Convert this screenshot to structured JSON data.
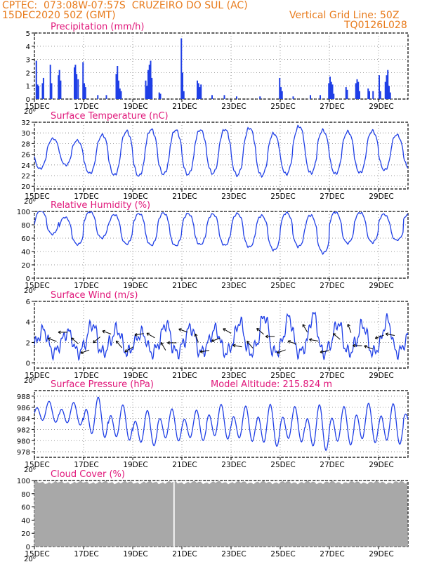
{
  "header": {
    "line1": "CPTEC:  073:08W-07:57S  CRUZEIRO DO SUL (AC)",
    "line2_left": "15DEC2020 50Z (GMT)",
    "line2_right": "Vertical Grid Line: 50Z",
    "line3_right": "TQ0126L028"
  },
  "colors": {
    "series": "#1f3fe6",
    "bars": "#1f3fe6",
    "cloud": "#a8a8a8",
    "title": "#e0177a",
    "header": "#e87b1c"
  },
  "x_tick_labels": [
    "15DEC",
    "17DEC",
    "19DEC",
    "21DEC",
    "23DEC",
    "25DEC",
    "27DEC",
    "29DEC"
  ],
  "x_ticks_days": [
    0,
    2,
    4,
    6,
    8,
    10,
    12,
    14
  ],
  "x_range_days": [
    0,
    15.2
  ],
  "cut_label": "20⁰",
  "chart_data": [
    {
      "id": "precip",
      "type": "bar",
      "title": "Precipitation (mm/h)",
      "ylim": [
        0,
        5
      ],
      "yticks": [
        0,
        1,
        2,
        3,
        4,
        5
      ],
      "events": [
        [
          0.05,
          2.9
        ],
        [
          0.1,
          1.1
        ],
        [
          0.14,
          1.0
        ],
        [
          0.3,
          1.2
        ],
        [
          0.34,
          1.6
        ],
        [
          0.62,
          2.6
        ],
        [
          0.67,
          1.2
        ],
        [
          0.95,
          1.8
        ],
        [
          0.99,
          2.2
        ],
        [
          1.04,
          1.4
        ],
        [
          1.6,
          2.4
        ],
        [
          1.64,
          2.6
        ],
        [
          1.69,
          1.9
        ],
        [
          1.75,
          1.5
        ],
        [
          1.95,
          2.8
        ],
        [
          2.0,
          1.2
        ],
        [
          2.05,
          0.9
        ],
        [
          2.55,
          0.3
        ],
        [
          2.9,
          0.3
        ],
        [
          3.3,
          1.9
        ],
        [
          3.35,
          2.5
        ],
        [
          3.4,
          1.4
        ],
        [
          3.45,
          0.8
        ],
        [
          3.5,
          0.6
        ],
        [
          4.5,
          1.4
        ],
        [
          4.55,
          1.0
        ],
        [
          4.6,
          2.2
        ],
        [
          4.65,
          2.6
        ],
        [
          4.7,
          2.9
        ],
        [
          4.75,
          1.6
        ],
        [
          5.05,
          0.5
        ],
        [
          5.1,
          0.4
        ],
        [
          5.95,
          4.6
        ],
        [
          6.0,
          2.0
        ],
        [
          6.05,
          0.6
        ],
        [
          6.6,
          1.4
        ],
        [
          6.65,
          1.2
        ],
        [
          6.7,
          0.9
        ],
        [
          6.75,
          1.1
        ],
        [
          7.2,
          0.3
        ],
        [
          7.7,
          0.3
        ],
        [
          8.2,
          0.2
        ],
        [
          9.15,
          0.2
        ],
        [
          9.95,
          1.6
        ],
        [
          10.0,
          0.9
        ],
        [
          10.05,
          0.6
        ],
        [
          10.5,
          0.2
        ],
        [
          11.2,
          0.3
        ],
        [
          11.6,
          0.3
        ],
        [
          11.95,
          1.2
        ],
        [
          12.0,
          1.7
        ],
        [
          12.05,
          1.3
        ],
        [
          12.1,
          1.1
        ],
        [
          12.15,
          0.4
        ],
        [
          12.65,
          0.9
        ],
        [
          12.7,
          0.7
        ],
        [
          13.05,
          1.2
        ],
        [
          13.1,
          1.5
        ],
        [
          13.15,
          1.3
        ],
        [
          13.2,
          0.6
        ],
        [
          13.55,
          0.8
        ],
        [
          13.6,
          0.6
        ],
        [
          13.75,
          0.6
        ],
        [
          14.0,
          1.8
        ],
        [
          14.05,
          0.6
        ],
        [
          14.25,
          1.3
        ],
        [
          14.3,
          1.8
        ],
        [
          14.35,
          2.2
        ],
        [
          14.4,
          1.0
        ],
        [
          14.45,
          0.5
        ]
      ]
    },
    {
      "id": "temp",
      "type": "line",
      "title": "Surface Temperature (nC)",
      "ylim": [
        19.5,
        32
      ],
      "yticks": [
        20,
        22,
        24,
        26,
        28,
        30,
        32
      ],
      "daily_min": [
        22.9,
        24.5,
        22.5,
        22.2,
        21.8,
        22.3,
        22.1,
        22.5,
        22.1,
        21.9,
        22.2,
        22.5,
        22.3,
        22.4,
        22.9,
        23.4
      ],
      "daily_max": [
        28.4,
        29.1,
        28.4,
        30.0,
        30.4,
        30.7,
        30.5,
        30.6,
        30.7,
        31.0,
        29.5,
        31.8,
        30.0,
        30.3,
        30.4,
        29.4
      ]
    },
    {
      "id": "rh",
      "type": "line",
      "title": "Relative Humidity (%)",
      "ylim": [
        0,
        100
      ],
      "yticks": [
        0,
        20,
        40,
        60,
        80,
        100
      ],
      "daily_high": [
        100,
        92,
        98,
        95,
        96,
        98,
        97,
        95,
        96,
        95,
        96,
        97,
        100,
        98,
        100,
        96
      ],
      "daily_low": [
        60,
        55,
        58,
        52,
        51,
        48,
        49,
        50,
        46,
        43,
        48,
        40,
        51,
        55,
        54,
        72
      ]
    },
    {
      "id": "wind",
      "type": "line",
      "title": "Surface Wind (m/s)",
      "ylim": [
        -0.5,
        6
      ],
      "yticks": [
        0,
        2,
        4,
        6
      ],
      "daily_peak": [
        3.3,
        3.1,
        4.0,
        3.4,
        3.0,
        4.0,
        3.6,
        3.4,
        4.2,
        4.9,
        4.7,
        5.0,
        4.1,
        3.9,
        4.4,
        3.5
      ],
      "arrow_angles_deg": [
        200,
        180,
        220,
        160,
        140,
        200,
        230,
        150,
        170,
        210,
        240,
        180,
        200,
        250,
        170,
        160,
        210,
        190,
        230,
        220,
        180,
        160,
        200,
        240,
        190,
        170,
        220,
        250,
        180,
        200,
        160,
        190
      ],
      "arrow_count": 32
    },
    {
      "id": "pres",
      "type": "line",
      "title": "Surface Pressure (hPa)",
      "extra_title": "Model Altitude: 215.824 m",
      "ylim": [
        977,
        989
      ],
      "yticks": [
        978,
        980,
        982,
        984,
        986,
        988
      ],
      "daily_max": [
        987.0,
        986.8,
        987.7,
        986.3,
        985.3,
        985.6,
        985.4,
        986.4,
        986.1,
        986.4,
        986.0,
        986.3,
        986.0,
        986.6,
        986.5,
        986.1
      ],
      "daily_min": [
        983.0,
        982.5,
        980.0,
        979.6,
        978.6,
        979.5,
        979.6,
        979.8,
        979.4,
        978.4,
        979.3,
        977.6,
        978.7,
        979.1,
        978.8,
        981.2
      ]
    },
    {
      "id": "cloud",
      "type": "area",
      "title": "Cloud Cover (%)",
      "ylim": [
        0,
        100
      ],
      "yticks": [
        0,
        20,
        40,
        60,
        80,
        100
      ],
      "level": 97,
      "gap_at_day": 5.68
    }
  ]
}
